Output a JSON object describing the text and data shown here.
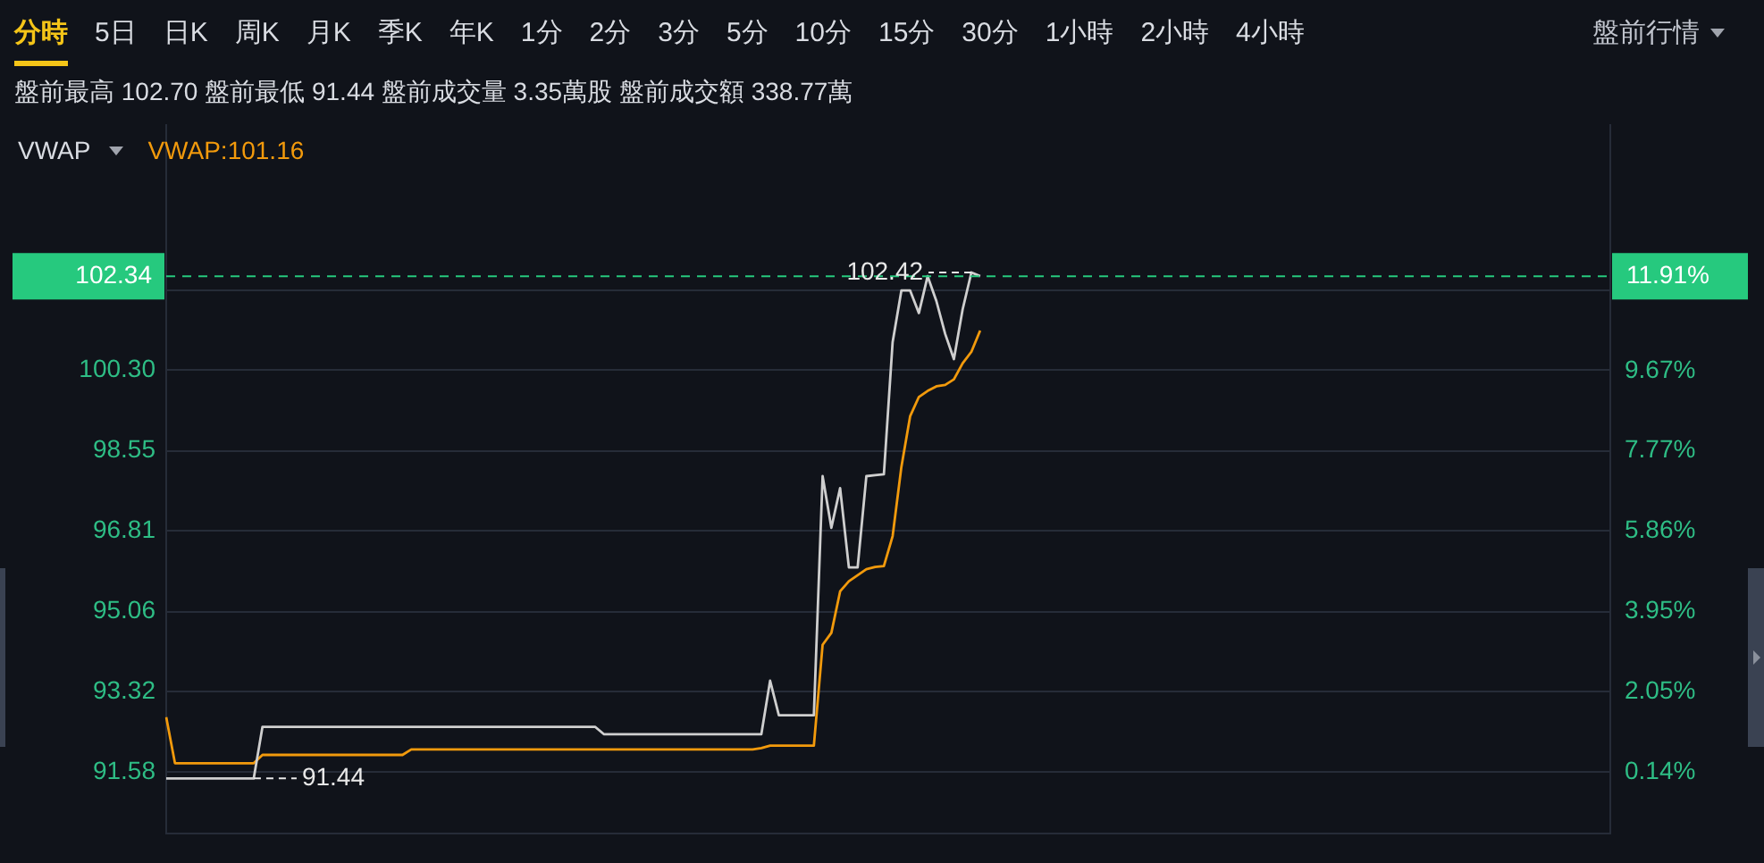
{
  "chart_data": {
    "type": "line",
    "subtitle": "盤前最高 102.70 盤前最低 91.44 盤前成交量 3.35萬股 盤前成交額 338.77萬",
    "annotations": [
      "分時",
      "5日",
      "日K",
      "周K",
      "月K",
      "季K",
      "年K",
      "1分",
      "2分",
      "3分",
      "5分",
      "10分",
      "15分",
      "30分",
      "1小時",
      "2小時",
      "4小時",
      "盤前行情",
      "VWAP",
      "91.44",
      "11.91%",
      {
        "text": "102.42",
        "y": 102.42
      }
    ],
    "categories": [
      null,
      null,
      null,
      null,
      null,
      null,
      null,
      null,
      null,
      null,
      null,
      null,
      null,
      null,
      null,
      null,
      null,
      null,
      null,
      null,
      null,
      null,
      null,
      null,
      null,
      null,
      null,
      null,
      null,
      null,
      null,
      null,
      null,
      null,
      null,
      null,
      null,
      null,
      null,
      null,
      null,
      null,
      null,
      null,
      null,
      null,
      null,
      null,
      null,
      null,
      null,
      null,
      null,
      null,
      null,
      null,
      null,
      null,
      null,
      null,
      null,
      null,
      null,
      null,
      null,
      null,
      null,
      null,
      null,
      null,
      null,
      null,
      null,
      null,
      null,
      null,
      null,
      null,
      null,
      null,
      null,
      null,
      null,
      null,
      null,
      null,
      null,
      null,
      null,
      null,
      null,
      null,
      null,
      null,
      null,
      null,
      null,
      null,
      null,
      null,
      null,
      null,
      null,
      null,
      null,
      null,
      null,
      null,
      null,
      null,
      null,
      null,
      null,
      null,
      null,
      null,
      null,
      null,
      null,
      null,
      null,
      null,
      null,
      null,
      null,
      null,
      null,
      null,
      null,
      null,
      null,
      null,
      null,
      null,
      null,
      null,
      null,
      null,
      null,
      null,
      null,
      null,
      null,
      null,
      null,
      null,
      null,
      null,
      null,
      null,
      null,
      null,
      null,
      null,
      null,
      null,
      null,
      null,
      null,
      null,
      null,
      null,
      null,
      null,
      null,
      null
    ],
    "series": [
      {
        "color": "#cfcfcf",
        "values": [
          91.44,
          91.44,
          91.44,
          91.44,
          91.44,
          91.44,
          91.44,
          91.44,
          91.44,
          91.44,
          91.44,
          92.56,
          92.56,
          92.56,
          92.56,
          92.56,
          92.56,
          92.56,
          92.56,
          92.56,
          92.56,
          92.56,
          92.56,
          92.56,
          92.56,
          92.56,
          92.56,
          92.56,
          92.56,
          92.56,
          92.56,
          92.56,
          92.56,
          92.56,
          92.56,
          92.56,
          92.56,
          92.56,
          92.56,
          92.56,
          92.56,
          92.56,
          92.56,
          92.56,
          92.56,
          92.56,
          92.56,
          92.56,
          92.56,
          92.56,
          92.4,
          92.4,
          92.4,
          92.4,
          92.4,
          92.4,
          92.4,
          92.4,
          92.4,
          92.4,
          92.4,
          92.4,
          92.4,
          92.4,
          92.4,
          92.4,
          92.4,
          92.4,
          92.4,
          93.56,
          92.81,
          92.81,
          92.81,
          92.81,
          92.81,
          98.0,
          96.88,
          97.74,
          96.02,
          96.02,
          98.0,
          98.02,
          98.04,
          100.91,
          102.03,
          102.03,
          101.54,
          102.34,
          101.8,
          101.09,
          100.54,
          101.62,
          102.42,
          102.34,
          null,
          null,
          null,
          null,
          null,
          null,
          null,
          null,
          null,
          null,
          null,
          null,
          null,
          null,
          null,
          null,
          null,
          null,
          null,
          null,
          null,
          null,
          null,
          null,
          null,
          null,
          null,
          null,
          null,
          null,
          null,
          null,
          null,
          null,
          null,
          null,
          null,
          null,
          null,
          null,
          null,
          null,
          null,
          null,
          null,
          null,
          null,
          null,
          null,
          null,
          null,
          null,
          null,
          null,
          null,
          null,
          null,
          null,
          null,
          null,
          null,
          null,
          null,
          null,
          null,
          null,
          null,
          null,
          null,
          null,
          null,
          null
        ]
      },
      {
        "name": "VWAP:101.16",
        "color": "#f29a0c",
        "values": [
          92.77,
          91.77,
          91.77,
          91.77,
          91.77,
          91.77,
          91.77,
          91.77,
          91.77,
          91.77,
          91.77,
          91.95,
          91.95,
          91.95,
          91.95,
          91.95,
          91.95,
          91.95,
          91.95,
          91.95,
          91.95,
          91.95,
          91.95,
          91.95,
          91.95,
          91.95,
          91.95,
          91.95,
          92.07,
          92.07,
          92.07,
          92.07,
          92.07,
          92.07,
          92.07,
          92.07,
          92.07,
          92.07,
          92.07,
          92.07,
          92.07,
          92.07,
          92.07,
          92.07,
          92.07,
          92.07,
          92.07,
          92.07,
          92.07,
          92.07,
          92.07,
          92.07,
          92.07,
          92.07,
          92.07,
          92.07,
          92.07,
          92.07,
          92.07,
          92.07,
          92.07,
          92.07,
          92.07,
          92.07,
          92.07,
          92.07,
          92.07,
          92.07,
          92.1,
          92.15,
          92.15,
          92.15,
          92.15,
          92.15,
          92.15,
          94.34,
          94.6,
          95.5,
          95.72,
          95.85,
          95.98,
          96.03,
          96.05,
          96.7,
          98.2,
          99.3,
          99.72,
          99.85,
          99.95,
          99.98,
          100.1,
          100.45,
          100.7,
          101.16,
          null,
          null,
          null,
          null,
          null,
          null,
          null,
          null,
          null,
          null,
          null,
          null,
          null,
          null,
          null,
          null,
          null,
          null,
          null,
          null,
          null,
          null,
          null,
          null,
          null,
          null,
          null,
          null,
          null,
          null,
          null,
          null,
          null,
          null,
          null,
          null,
          null,
          null,
          null,
          null,
          null,
          null,
          null,
          null,
          null,
          null,
          null,
          null,
          null,
          null,
          null,
          null,
          null,
          null,
          null,
          null,
          null,
          null,
          null,
          null,
          null,
          null,
          null,
          null,
          null,
          null,
          null,
          null,
          null,
          null,
          null,
          null
        ]
      }
    ],
    "ylim": [
      90.24,
      105.62
    ],
    "yticks": [
      91.58,
      93.32,
      95.06,
      96.81,
      98.55,
      {
        "value": 100.3,
        "label": "100.30"
      },
      {
        "value": 102.04,
        "label": null
      }
    ],
    "y2lim": [
      -1.32,
      15.5
    ],
    "y2ticks": [
      {
        "value": 0.14,
        "label": "0.14%"
      },
      {
        "value": 2.05,
        "label": "2.05%"
      },
      {
        "value": 3.95,
        "label": "3.95%"
      },
      {
        "value": 5.86,
        "label": "5.86%"
      },
      {
        "value": 7.77,
        "label": "7.77%"
      },
      {
        "value": 9.67,
        "label": "9.67%"
      },
      {
        "value": 11.58,
        "label": null
      }
    ],
    "ref_lines": [
      {
        "axis": "y",
        "value": 102.34,
        "label": "102.34",
        "color": "#26c97e",
        "line_style": "dashed"
      }
    ],
    "grid": "y",
    "legend": "top left",
    "tick_labels": "y",
    "marker": "none",
    "line_style": "solid"
  }
}
